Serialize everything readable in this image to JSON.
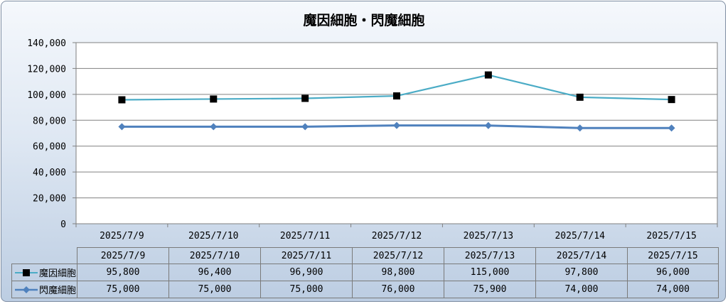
{
  "chart_data": {
    "type": "line",
    "title": "魔因細胞・閃魔細胞",
    "categories": [
      "2025/7/9",
      "2025/7/10",
      "2025/7/11",
      "2025/7/12",
      "2025/7/13",
      "2025/7/14",
      "2025/7/15"
    ],
    "series": [
      {
        "name": "魔因細胞",
        "values": [
          95800,
          96400,
          96900,
          98800,
          115000,
          97800,
          96000
        ],
        "color": "#4bacc6",
        "marker": "square"
      },
      {
        "name": "閃魔細胞",
        "values": [
          75000,
          75000,
          75000,
          76000,
          75900,
          74000,
          74000
        ],
        "color": "#4f81bd",
        "marker": "diamond"
      }
    ],
    "ylim": [
      0,
      140000
    ],
    "yticks": [
      0,
      20000,
      40000,
      60000,
      80000,
      100000,
      120000,
      140000
    ],
    "ytick_labels": [
      "0",
      "20,000",
      "40,000",
      "60,000",
      "80,000",
      "100,000",
      "120,000",
      "140,000"
    ],
    "grid": true,
    "legend": "data-table",
    "table": {
      "header": [
        "2025/7/9",
        "2025/7/10",
        "2025/7/11",
        "2025/7/12",
        "2025/7/13",
        "2025/7/14",
        "2025/7/15"
      ],
      "rows": [
        {
          "label": "魔因細胞",
          "cells": [
            "95,800",
            "96,400",
            "96,900",
            "98,800",
            "115,000",
            "97,800",
            "96,000"
          ]
        },
        {
          "label": "閃魔細胞",
          "cells": [
            "75,000",
            "75,000",
            "75,000",
            "76,000",
            "75,900",
            "74,000",
            "74,000"
          ]
        }
      ]
    }
  }
}
